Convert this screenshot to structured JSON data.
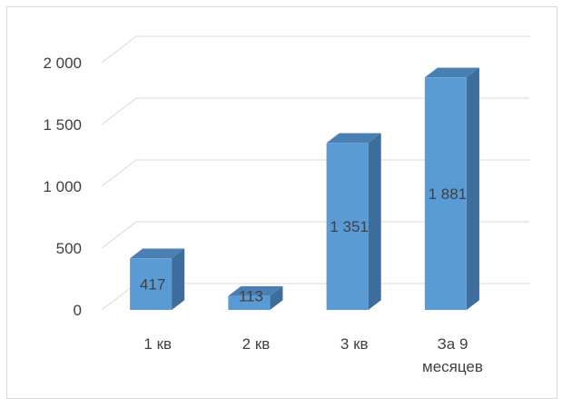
{
  "chart_data": {
    "type": "bar",
    "style": "3d-clustered-column",
    "categories": [
      "1 кв",
      "2 кв",
      "3 кв",
      "За 9 месяцев"
    ],
    "category_lines": [
      [
        "1 кв"
      ],
      [
        "2 кв"
      ],
      [
        "3 кв"
      ],
      [
        "За 9",
        "месяцев"
      ]
    ],
    "values": [
      417,
      113,
      1351,
      1881
    ],
    "value_labels": [
      "417",
      "113",
      "1 351",
      "1 881"
    ],
    "yticks": [
      0,
      500,
      1000,
      1500,
      2000
    ],
    "ytick_labels": [
      "0",
      "500",
      "1 000",
      "1 500",
      "2 000"
    ],
    "ylim": [
      0,
      2000
    ],
    "grid": true,
    "legend": "none",
    "colors": {
      "front": "#5b9bd5",
      "top": "#4a7fb3",
      "side": "#3d6d9a",
      "grid": "#d9d9d9"
    }
  }
}
